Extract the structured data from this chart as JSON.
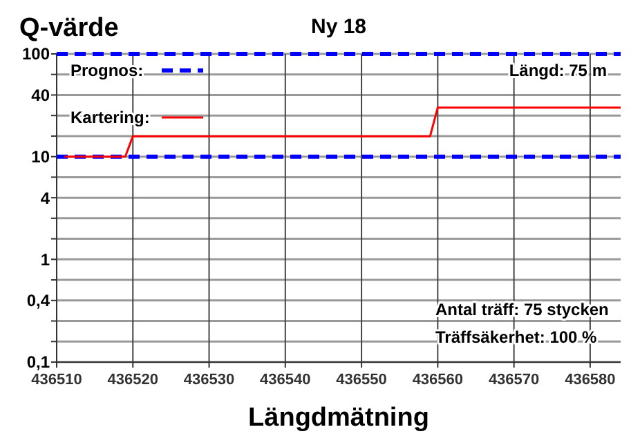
{
  "chart_data": {
    "type": "line",
    "title": "Ny 18",
    "xlabel": "Längdmätning",
    "ylabel": "Q-värde",
    "log": "y",
    "xlim": [
      436510,
      436584
    ],
    "xticks": [
      436510,
      436520,
      436530,
      436540,
      436550,
      436560,
      436570,
      436580
    ],
    "ylim": [
      0.1,
      100
    ],
    "yticks": [
      {
        "value": 0.1,
        "label": "0,1"
      },
      {
        "value": 0.1585,
        "label": null
      },
      {
        "value": 0.2512,
        "label": null
      },
      {
        "value": 0.3981,
        "label": "0,4"
      },
      {
        "value": 0.631,
        "label": null
      },
      1,
      {
        "value": 1.585,
        "label": null
      },
      {
        "value": 2.512,
        "label": null
      },
      {
        "value": 3.981,
        "label": "4"
      },
      {
        "value": 6.31,
        "label": null
      },
      10,
      {
        "value": 15.85,
        "label": null
      },
      {
        "value": 25.12,
        "label": null
      },
      {
        "value": 39.81,
        "label": "40"
      },
      {
        "value": 63.1,
        "label": null
      },
      100
    ],
    "grid": true,
    "legend": "top left",
    "marker": "none",
    "series": [
      {
        "name": "Prognos:",
        "color": "#0000ff",
        "line_style": "dashed",
        "x": [
          436510,
          436584
        ],
        "values": [
          100,
          100
        ]
      },
      {
        "color": "#0000ff",
        "line_style": "dashed",
        "x": [
          436510,
          436584
        ],
        "values": [
          10,
          10
        ]
      },
      {
        "name": "Kartering:",
        "color": "#ff0000",
        "line_style": "solid",
        "x": [
          436511,
          436519,
          436520,
          436559,
          436560,
          436584
        ],
        "values": [
          10,
          10,
          15.8,
          15.8,
          30,
          30
        ]
      }
    ],
    "annotations": [
      "Längd: 75 m",
      "Antal träff: 75 stycken",
      "Träffsäkerhet: 100 %"
    ]
  }
}
